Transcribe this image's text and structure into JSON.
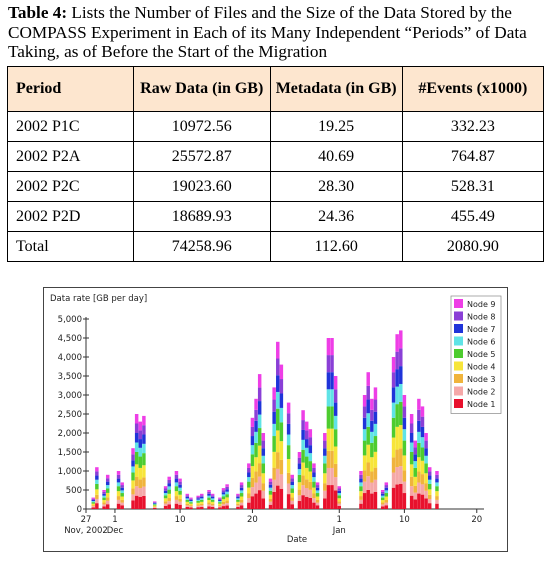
{
  "caption": {
    "label": "Table 4:",
    "text": " Lists the Number of Files and the Size of the Data Stored by the COMPASS Experiment in Each of its Many Independent “Periods” of Data Taking, as of Before the Start of the Migration"
  },
  "table": {
    "headers": [
      "Period",
      "Raw Data (in GB)",
      "Metadata (in GB)",
      "#Events (x1000)"
    ],
    "rows": [
      [
        "2002 P1C",
        "10972.56",
        "19.25",
        "332.23"
      ],
      [
        "2002 P2A",
        "25572.87",
        "40.69",
        "764.87"
      ],
      [
        "2002 P2C",
        "19023.60",
        "28.30",
        "528.31"
      ],
      [
        "2002 P2D",
        "18689.93",
        "24.36",
        "455.49"
      ],
      [
        "Total",
        "74258.96",
        "112.60",
        "2080.90"
      ]
    ]
  },
  "chart_data": {
    "type": "bar",
    "stacked": true,
    "title": "",
    "ylabel": "Data rate [GB per day]",
    "xlabel": "Date",
    "ylim": [
      0,
      5000
    ],
    "yticks": [
      "0",
      "500",
      "1,000",
      "1,500",
      "2,000",
      "2,500",
      "3,000",
      "3,500",
      "4,000",
      "4,500",
      "5,000"
    ],
    "x_range": [
      27,
      82
    ],
    "xticks": [
      {
        "x": 27,
        "label": "27",
        "sub": "Nov, 2002"
      },
      {
        "x": 31,
        "label": "1",
        "sub": "Dec"
      },
      {
        "x": 40,
        "label": "10",
        "sub": ""
      },
      {
        "x": 50,
        "label": "20",
        "sub": ""
      },
      {
        "x": 62,
        "label": "1",
        "sub": "Jan"
      },
      {
        "x": 71,
        "label": "10",
        "sub": ""
      },
      {
        "x": 81,
        "label": "20",
        "sub": ""
      }
    ],
    "legend_position": "top-right",
    "series": [
      {
        "name": "Node 1",
        "color": "#e8112d"
      },
      {
        "name": "Node 2",
        "color": "#f5a8a8"
      },
      {
        "name": "Node 3",
        "color": "#f0b43c"
      },
      {
        "name": "Node 4",
        "color": "#f7e53a"
      },
      {
        "name": "Node 5",
        "color": "#4dcc2f"
      },
      {
        "name": "Node 6",
        "color": "#5fe3e6"
      },
      {
        "name": "Node 7",
        "color": "#1f34d9"
      },
      {
        "name": "Node 8",
        "color": "#8a3fd6"
      },
      {
        "name": "Node 9",
        "color": "#ee3ee6"
      }
    ],
    "bars": [
      {
        "x": 28,
        "total": 300
      },
      {
        "x": 28.5,
        "total": 1100
      },
      {
        "x": 29.5,
        "total": 500
      },
      {
        "x": 30,
        "total": 900
      },
      {
        "x": 31.5,
        "total": 1000
      },
      {
        "x": 32,
        "total": 700
      },
      {
        "x": 33.5,
        "total": 1600
      },
      {
        "x": 34,
        "total": 2500
      },
      {
        "x": 34.5,
        "total": 2300
      },
      {
        "x": 35,
        "total": 2450
      },
      {
        "x": 36.5,
        "total": 200
      },
      {
        "x": 38,
        "total": 600
      },
      {
        "x": 38.5,
        "total": 850
      },
      {
        "x": 39.5,
        "total": 1000
      },
      {
        "x": 40,
        "total": 800
      },
      {
        "x": 41,
        "total": 400
      },
      {
        "x": 41.5,
        "total": 300
      },
      {
        "x": 42.5,
        "total": 350
      },
      {
        "x": 43,
        "total": 400
      },
      {
        "x": 44,
        "total": 500
      },
      {
        "x": 44.5,
        "total": 400
      },
      {
        "x": 45.5,
        "total": 300
      },
      {
        "x": 46,
        "total": 550
      },
      {
        "x": 46.5,
        "total": 650
      },
      {
        "x": 48,
        "total": 400
      },
      {
        "x": 48.5,
        "total": 700
      },
      {
        "x": 49.5,
        "total": 1200
      },
      {
        "x": 50,
        "total": 2400
      },
      {
        "x": 50.5,
        "total": 2900
      },
      {
        "x": 51,
        "total": 3550
      },
      {
        "x": 51.5,
        "total": 2000
      },
      {
        "x": 52.5,
        "total": 800
      },
      {
        "x": 53,
        "total": 3200
      },
      {
        "x": 53.5,
        "total": 4400
      },
      {
        "x": 54,
        "total": 3800
      },
      {
        "x": 55,
        "total": 2800
      },
      {
        "x": 55.5,
        "total": 900
      },
      {
        "x": 56.5,
        "total": 1500
      },
      {
        "x": 57,
        "total": 2600
      },
      {
        "x": 57.5,
        "total": 2300
      },
      {
        "x": 58,
        "total": 2100
      },
      {
        "x": 58.5,
        "total": 1200
      },
      {
        "x": 59,
        "total": 700
      },
      {
        "x": 60,
        "total": 2000
      },
      {
        "x": 60.5,
        "total": 4500
      },
      {
        "x": 61,
        "total": 4500
      },
      {
        "x": 61.5,
        "total": 3500
      },
      {
        "x": 62,
        "total": 600
      },
      {
        "x": 65,
        "total": 1000
      },
      {
        "x": 65.5,
        "total": 3000
      },
      {
        "x": 66,
        "total": 3600
      },
      {
        "x": 66.5,
        "total": 2900
      },
      {
        "x": 67,
        "total": 3200
      },
      {
        "x": 68,
        "total": 500
      },
      {
        "x": 68.5,
        "total": 700
      },
      {
        "x": 69.5,
        "total": 4000
      },
      {
        "x": 70,
        "total": 4600
      },
      {
        "x": 70.5,
        "total": 4700
      },
      {
        "x": 71,
        "total": 3000
      },
      {
        "x": 72,
        "total": 2500
      },
      {
        "x": 72.5,
        "total": 1800
      },
      {
        "x": 73,
        "total": 2900
      },
      {
        "x": 73.5,
        "total": 2700
      },
      {
        "x": 74,
        "total": 2000
      },
      {
        "x": 74.5,
        "total": 1100
      },
      {
        "x": 75.5,
        "total": 1000
      }
    ]
  }
}
